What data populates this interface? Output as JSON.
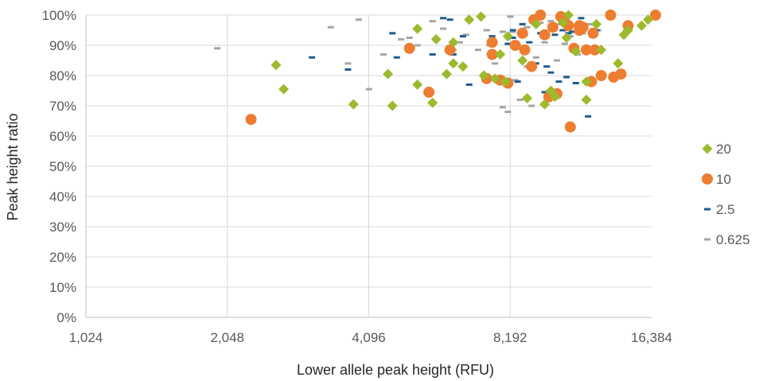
{
  "chart_data": {
    "type": "scatter",
    "title": "",
    "xlabel": "Lower allele peak height (RFU)",
    "ylabel": "Peak height ratio",
    "x_scale": "log2",
    "xlim": [
      1024,
      16384
    ],
    "ylim": [
      0,
      100
    ],
    "x_ticks": [
      "1,024",
      "2,048",
      "4,096",
      "8,192",
      "16,384"
    ],
    "y_ticks": [
      "0%",
      "10%",
      "20%",
      "30%",
      "40%",
      "50%",
      "60%",
      "70%",
      "80%",
      "90%",
      "100%"
    ],
    "grid": true,
    "legend_position": "right",
    "series": [
      {
        "name": "20",
        "marker": "diamond",
        "color": "#9bbb2d",
        "points": [
          [
            2600,
            83.5
          ],
          [
            2700,
            75.5
          ],
          [
            3800,
            70.5
          ],
          [
            4500,
            80.5
          ],
          [
            4600,
            70
          ],
          [
            5200,
            95.5
          ],
          [
            5200,
            77
          ],
          [
            5600,
            71
          ],
          [
            5700,
            92
          ],
          [
            6000,
            80.5
          ],
          [
            6200,
            91
          ],
          [
            6200,
            84
          ],
          [
            6500,
            83
          ],
          [
            6700,
            98.5
          ],
          [
            7100,
            99.5
          ],
          [
            7200,
            80
          ],
          [
            7600,
            79
          ],
          [
            7800,
            87
          ],
          [
            8100,
            93
          ],
          [
            8000,
            78
          ],
          [
            8700,
            85
          ],
          [
            8900,
            72.5
          ],
          [
            9300,
            97
          ],
          [
            9700,
            70.5
          ],
          [
            10000,
            75
          ],
          [
            10200,
            73
          ],
          [
            10600,
            97.5
          ],
          [
            10900,
            100
          ],
          [
            10800,
            92.5
          ],
          [
            11300,
            88
          ],
          [
            11900,
            72
          ],
          [
            11900,
            78
          ],
          [
            12500,
            97
          ],
          [
            12800,
            88.5
          ],
          [
            13900,
            84
          ],
          [
            14300,
            93.5
          ],
          [
            14600,
            95
          ],
          [
            15600,
            96.5
          ],
          [
            16100,
            98.5
          ]
        ]
      },
      {
        "name": "10",
        "marker": "circle",
        "color": "#ed7d31",
        "points": [
          [
            2300,
            65.5
          ],
          [
            5000,
            89
          ],
          [
            5500,
            74.5
          ],
          [
            6100,
            88.5
          ],
          [
            7300,
            79
          ],
          [
            7500,
            87
          ],
          [
            7500,
            91
          ],
          [
            7800,
            78.5
          ],
          [
            8100,
            77.5
          ],
          [
            8400,
            90
          ],
          [
            8700,
            94
          ],
          [
            8800,
            88.5
          ],
          [
            9100,
            83
          ],
          [
            9200,
            98.5
          ],
          [
            9500,
            100
          ],
          [
            9700,
            93.5
          ],
          [
            9900,
            73
          ],
          [
            10100,
            96
          ],
          [
            10300,
            74
          ],
          [
            10500,
            99.5
          ],
          [
            10700,
            99
          ],
          [
            10900,
            96.5
          ],
          [
            11000,
            63
          ],
          [
            11200,
            89
          ],
          [
            11500,
            95
          ],
          [
            11500,
            96.5
          ],
          [
            11700,
            96
          ],
          [
            11900,
            88.5
          ],
          [
            12200,
            78
          ],
          [
            12300,
            94
          ],
          [
            12400,
            88.5
          ],
          [
            12800,
            80
          ],
          [
            13400,
            100
          ],
          [
            13600,
            79.5
          ],
          [
            14100,
            80.5
          ],
          [
            14600,
            96.5
          ],
          [
            16700,
            100
          ]
        ]
      },
      {
        "name": "2.5",
        "marker": "dash",
        "color": "#1f5b8f",
        "points": [
          [
            3100,
            86
          ],
          [
            3700,
            82
          ],
          [
            4600,
            94
          ],
          [
            4700,
            86
          ],
          [
            5600,
            87
          ],
          [
            5900,
            99
          ],
          [
            6100,
            98.5
          ],
          [
            6200,
            87
          ],
          [
            6500,
            93
          ],
          [
            6700,
            77
          ],
          [
            7300,
            79.5
          ],
          [
            7500,
            93
          ],
          [
            7800,
            79.5
          ],
          [
            8100,
            90.5
          ],
          [
            8300,
            95
          ],
          [
            8300,
            92.5
          ],
          [
            8500,
            78
          ],
          [
            8700,
            97
          ],
          [
            8800,
            93.5
          ],
          [
            9000,
            91
          ],
          [
            9300,
            84
          ],
          [
            9500,
            94
          ],
          [
            9700,
            74.5
          ],
          [
            9800,
            83
          ],
          [
            10000,
            81
          ],
          [
            10200,
            93.5
          ],
          [
            10400,
            78
          ],
          [
            10600,
            95
          ],
          [
            10800,
            79.5
          ],
          [
            10900,
            94
          ],
          [
            11100,
            94.5
          ],
          [
            11300,
            77.5
          ],
          [
            11500,
            97
          ],
          [
            11600,
            99
          ],
          [
            11800,
            89
          ],
          [
            12000,
            66.5
          ],
          [
            12500,
            95
          ]
        ]
      },
      {
        "name": "0.625",
        "marker": "dash",
        "color": "#a5a5a5",
        "points": [
          [
            1950,
            89
          ],
          [
            3400,
            96
          ],
          [
            3700,
            84
          ],
          [
            3900,
            98.5
          ],
          [
            4100,
            75.5
          ],
          [
            4400,
            87
          ],
          [
            4800,
            92
          ],
          [
            5000,
            92.5
          ],
          [
            5200,
            90
          ],
          [
            5600,
            98
          ],
          [
            5900,
            95.5
          ],
          [
            6200,
            88.5
          ],
          [
            6400,
            91
          ],
          [
            6600,
            93.5
          ],
          [
            7000,
            88.5
          ],
          [
            7300,
            95
          ],
          [
            7400,
            90
          ],
          [
            7600,
            84
          ],
          [
            7900,
            94.5
          ],
          [
            7900,
            69.5
          ],
          [
            8100,
            68
          ],
          [
            8200,
            99.5
          ],
          [
            8300,
            94.5
          ],
          [
            8400,
            78.5
          ],
          [
            8600,
            72
          ],
          [
            8900,
            83
          ],
          [
            8900,
            96
          ],
          [
            9100,
            70
          ],
          [
            9300,
            86
          ],
          [
            9500,
            97.5
          ],
          [
            9700,
            91
          ],
          [
            10000,
            98
          ],
          [
            10300,
            85
          ],
          [
            10500,
            97
          ],
          [
            10700,
            90.5
          ],
          [
            11000,
            93
          ],
          [
            11400,
            87
          ],
          [
            11700,
            94
          ],
          [
            12100,
            97
          ],
          [
            12600,
            95
          ]
        ]
      }
    ]
  }
}
